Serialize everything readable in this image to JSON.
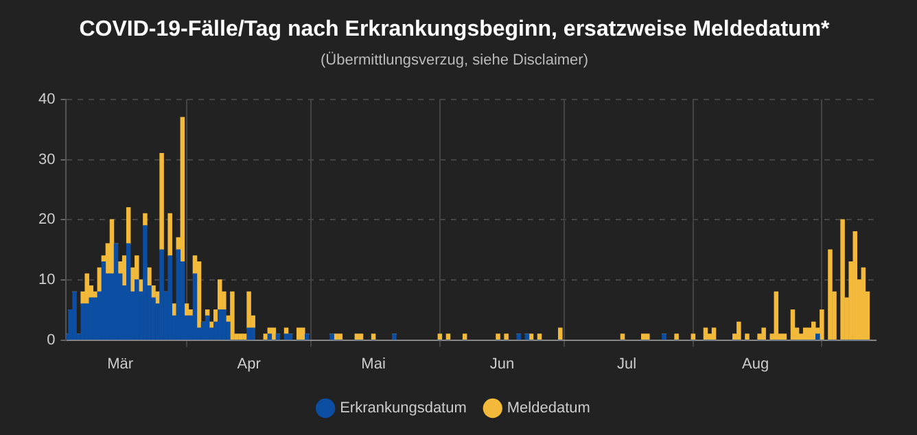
{
  "chart_data": {
    "type": "bar",
    "title": "COVID-19-Fälle/Tag nach Erkrankungsbeginn, ersatzweise Meldedatum*",
    "subtitle": "(Übermittlungsverzug, siehe Disclaimer)",
    "x": [
      "--03-03",
      "--03-04",
      "--03-05",
      "--03-06",
      "--03-07",
      "--03-08",
      "--03-09",
      "--03-10",
      "--03-11",
      "--03-12",
      "--03-13",
      "--03-14",
      "--03-15",
      "--03-16",
      "--03-17",
      "--03-18",
      "--03-19",
      "--03-20",
      "--03-21",
      "--03-22",
      "--03-23",
      "--03-24",
      "--03-25",
      "--03-26",
      "--03-27",
      "--03-28",
      "--03-29",
      "--03-30",
      "--03-31",
      "--04-01",
      "--04-02",
      "--04-03",
      "--04-04",
      "--04-05",
      "--04-06",
      "--04-07",
      "--04-08",
      "--04-09",
      "--04-10",
      "--04-11",
      "--04-12",
      "--04-13",
      "--04-14",
      "--04-15",
      "--04-16",
      "--04-17",
      "--04-20",
      "--04-21",
      "--04-22",
      "--04-23",
      "--04-25",
      "--04-26",
      "--04-28",
      "--04-29",
      "--04-30",
      "--05-06",
      "--05-07",
      "--05-08",
      "--05-12",
      "--05-13",
      "--05-16",
      "--05-21",
      "--06-01",
      "--06-03",
      "--06-07",
      "--06-15",
      "--06-17",
      "--06-20",
      "--06-22",
      "--06-23",
      "--06-25",
      "--06-30",
      "--07-15",
      "--07-20",
      "--07-21",
      "--07-25",
      "--07-28",
      "--08-01",
      "--08-04",
      "--08-05",
      "--08-06",
      "--08-11",
      "--08-12",
      "--08-14",
      "--08-17",
      "--08-18",
      "--08-20",
      "--08-21",
      "--08-22",
      "--08-23",
      "--08-25",
      "--08-26",
      "--08-27",
      "--08-28",
      "--08-29",
      "--08-30",
      "--08-31",
      "--09-01",
      "--09-03",
      "--09-04",
      "--09-06",
      "--09-07",
      "--09-08",
      "--09-09",
      "--09-10",
      "--09-11",
      "--09-12"
    ],
    "series": [
      {
        "name": "Erkrankungsdatum",
        "color": "#0b4ea2",
        "values": [
          1,
          5,
          8,
          1,
          6,
          6,
          7,
          7,
          8,
          13,
          11,
          11,
          16,
          11,
          9,
          16,
          8,
          10,
          8,
          19,
          9,
          7,
          6,
          15,
          8,
          14,
          4,
          15,
          13,
          4,
          4,
          11,
          2,
          3,
          4,
          2,
          3,
          5,
          5,
          3,
          0,
          0,
          0,
          0,
          2,
          2,
          0,
          1,
          0,
          1,
          1,
          1,
          0,
          0,
          1,
          1,
          0,
          0,
          0,
          0,
          0,
          1,
          0,
          0,
          0,
          0,
          0,
          1,
          1,
          0,
          0,
          0,
          0,
          0,
          0,
          1,
          0,
          0,
          0,
          0,
          0,
          0,
          0,
          0,
          0,
          0,
          0,
          0,
          0,
          0,
          0,
          0,
          0,
          0,
          0,
          0,
          1,
          0,
          0,
          0,
          0,
          0,
          0,
          0,
          0,
          0,
          0
        ]
      },
      {
        "name": "Meldedatum",
        "color": "#f2b93b",
        "values": [
          0,
          0,
          0,
          0,
          2,
          5,
          2,
          1,
          4,
          1,
          5,
          9,
          0,
          2,
          5,
          6,
          4,
          4,
          2,
          2,
          3,
          2,
          2,
          16,
          0,
          7,
          2,
          2,
          24,
          2,
          1,
          3,
          11,
          0,
          1,
          1,
          2,
          5,
          3,
          1,
          8,
          1,
          1,
          1,
          6,
          2,
          1,
          1,
          2,
          0,
          1,
          0,
          2,
          2,
          0,
          0,
          1,
          1,
          1,
          1,
          1,
          0,
          1,
          1,
          1,
          1,
          1,
          0,
          0,
          1,
          1,
          2,
          1,
          1,
          1,
          0,
          1,
          1,
          2,
          1,
          2,
          1,
          3,
          1,
          1,
          2,
          1,
          8,
          1,
          1,
          5,
          2,
          1,
          2,
          2,
          3,
          1,
          5,
          15,
          8,
          20,
          7,
          13,
          18,
          10,
          12,
          8
        ]
      }
    ],
    "stacked": true,
    "xlim": [
      "--03-03",
      "--09-14"
    ],
    "xticks": [
      {
        "value": "--03-16",
        "label": "Mär"
      },
      {
        "value": "--04-01",
        "label": null
      },
      {
        "value": "--04-16",
        "label": "Apr"
      },
      {
        "value": "--05-01",
        "label": null
      },
      {
        "value": "--05-16",
        "label": "Mai"
      },
      {
        "value": "--06-01",
        "label": null
      },
      {
        "value": "--06-16",
        "label": "Jun"
      },
      {
        "value": "--07-01",
        "label": null
      },
      {
        "value": "--07-16",
        "label": "Jul"
      },
      {
        "value": "--08-01",
        "label": null
      },
      {
        "value": "--08-16",
        "label": "Aug"
      },
      {
        "value": "--09-01",
        "label": null
      }
    ],
    "ylim": [
      0,
      40
    ],
    "yticks": [
      0,
      10,
      20,
      30,
      40
    ],
    "grid": true,
    "legend": "bottom"
  }
}
